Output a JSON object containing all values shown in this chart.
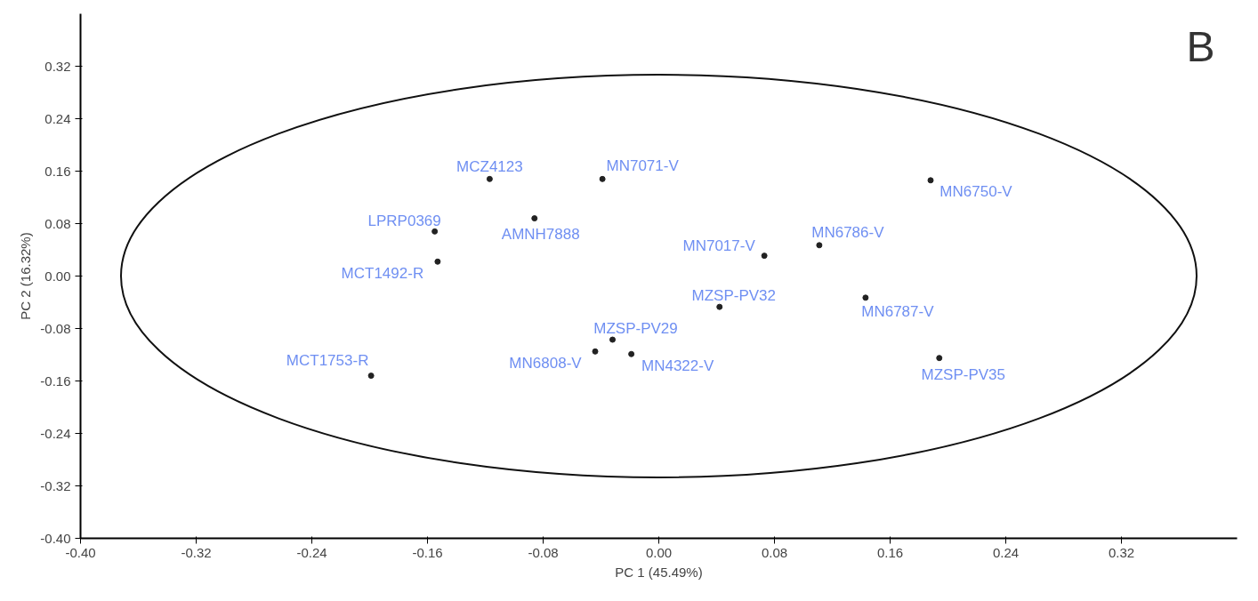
{
  "chart_data": {
    "type": "scatter",
    "xlabel": "PC 1 (45.49%)",
    "ylabel": "PC 2 (16.32%)",
    "xlim": [
      -0.4,
      0.4
    ],
    "ylim": [
      -0.4,
      0.4
    ],
    "xticks": [
      {
        "value": -0.4,
        "label": "-0.40"
      },
      {
        "value": -0.32,
        "label": "-0.32"
      },
      {
        "value": -0.24,
        "label": "-0.24"
      },
      {
        "value": -0.16,
        "label": "-0.16"
      },
      {
        "value": -0.08,
        "label": "-0.08"
      },
      {
        "value": 0,
        "label": "0.00"
      },
      {
        "value": 0.08,
        "label": "0.08"
      },
      {
        "value": 0.16,
        "label": "0.16"
      },
      {
        "value": 0.24,
        "label": "0.24"
      },
      {
        "value": 0.32,
        "label": "0.32"
      }
    ],
    "yticks": [
      {
        "value": -0.4,
        "label": "-0.40"
      },
      {
        "value": -0.32,
        "label": "-0.32"
      },
      {
        "value": -0.24,
        "label": "-0.24"
      },
      {
        "value": -0.16,
        "label": "-0.16"
      },
      {
        "value": -0.08,
        "label": "-0.08"
      },
      {
        "value": 0,
        "label": "0.00"
      },
      {
        "value": 0.08,
        "label": "0.08"
      },
      {
        "value": 0.16,
        "label": "0.16"
      },
      {
        "value": 0.24,
        "label": "0.24"
      },
      {
        "value": 0.32,
        "label": "0.32"
      }
    ],
    "grid": false,
    "marker": "circle",
    "series": [
      {
        "color": "#222222",
        "x": [
          -0.117,
          -0.039,
          0.188,
          -0.086,
          -0.155,
          -0.153,
          0.073,
          0.111,
          0.042,
          0.143,
          -0.032,
          -0.044,
          -0.019,
          0.194,
          -0.199
        ],
        "values": [
          0.148,
          0.148,
          0.146,
          0.088,
          0.068,
          0.022,
          0.031,
          0.047,
          -0.047,
          -0.033,
          -0.097,
          -0.115,
          -0.119,
          -0.125,
          -0.152
        ]
      }
    ],
    "annotations": [
      {
        "text": "MCZ4123",
        "x": -0.117,
        "y": 0.148
      },
      {
        "text": "MN7071-V",
        "x": -0.039,
        "y": 0.148
      },
      {
        "text": "MN6750-V",
        "x": 0.188,
        "y": 0.146
      },
      {
        "text": "AMNH7888",
        "x": -0.086,
        "y": 0.088
      },
      {
        "text": "LPRP0369",
        "x": -0.155,
        "y": 0.068
      },
      {
        "text": "MCT1492-R",
        "x": -0.153,
        "y": 0.022
      },
      {
        "text": "MN7017-V",
        "x": 0.073,
        "y": 0.031
      },
      {
        "text": "MN6786-V",
        "x": 0.111,
        "y": 0.047
      },
      {
        "text": "MZSP-PV32",
        "x": 0.042,
        "y": -0.047
      },
      {
        "text": "MN6787-V",
        "x": 0.143,
        "y": -0.033
      },
      {
        "text": "MZSP-PV29",
        "x": -0.032,
        "y": -0.097
      },
      {
        "text": "MN6808-V",
        "x": -0.044,
        "y": -0.115
      },
      {
        "text": "MN4322-V",
        "x": -0.019,
        "y": -0.119
      },
      {
        "text": "MZSP-PV35",
        "x": 0.194,
        "y": -0.125
      },
      {
        "text": "MCT1753-R",
        "x": -0.199,
        "y": -0.152
      },
      "B"
    ]
  }
}
